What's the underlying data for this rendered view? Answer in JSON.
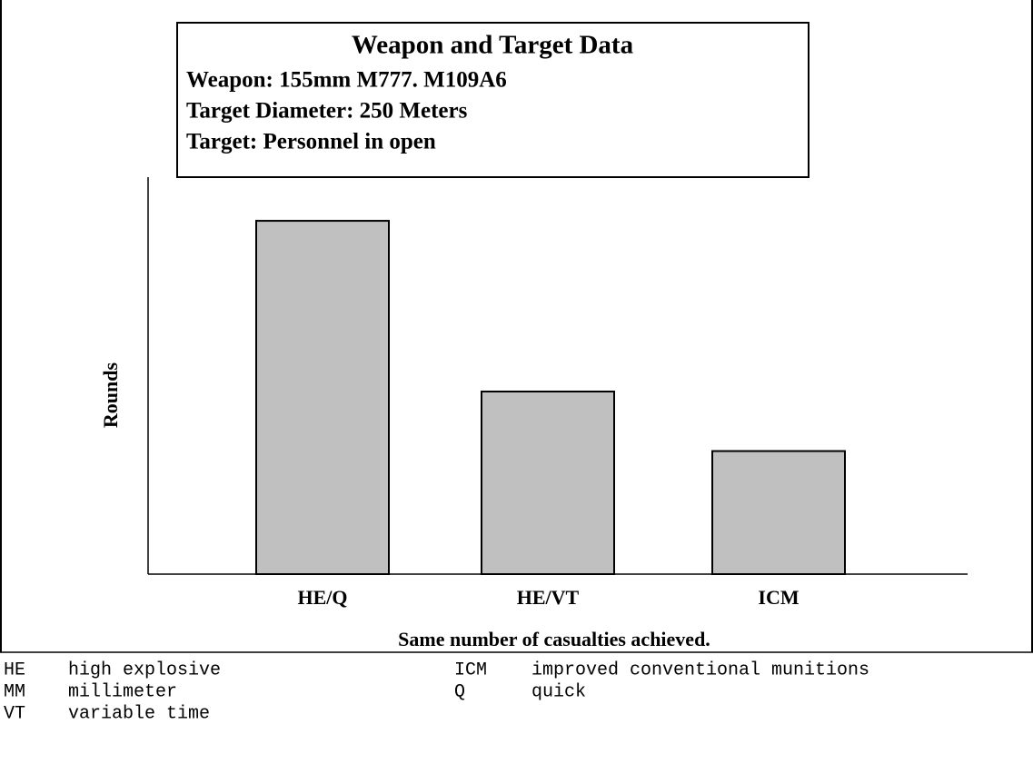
{
  "chart_data": {
    "type": "bar",
    "title": "Weapon and Target Data",
    "annotations": [
      "Weapon: 155mm M777. M109A6",
      "Target Diameter: 250 Meters",
      "Target: Personnel in open"
    ],
    "ylabel": "Rounds",
    "xlabel": "Same number of casualties achieved.",
    "categories": [
      "HE/Q",
      "HE/VT",
      "ICM"
    ],
    "values": [
      89,
      46,
      31
    ],
    "color": "#c0c0c0",
    "ylim": [
      0,
      100
    ]
  },
  "glossary": [
    {
      "abbr": "HE",
      "definition": "high explosive"
    },
    {
      "abbr": "ICM",
      "definition": "improved conventional munitions"
    },
    {
      "abbr": "MM",
      "definition": "millimeter"
    },
    {
      "abbr": "Q",
      "definition": "quick"
    },
    {
      "abbr": "VT",
      "definition": "variable time"
    }
  ]
}
